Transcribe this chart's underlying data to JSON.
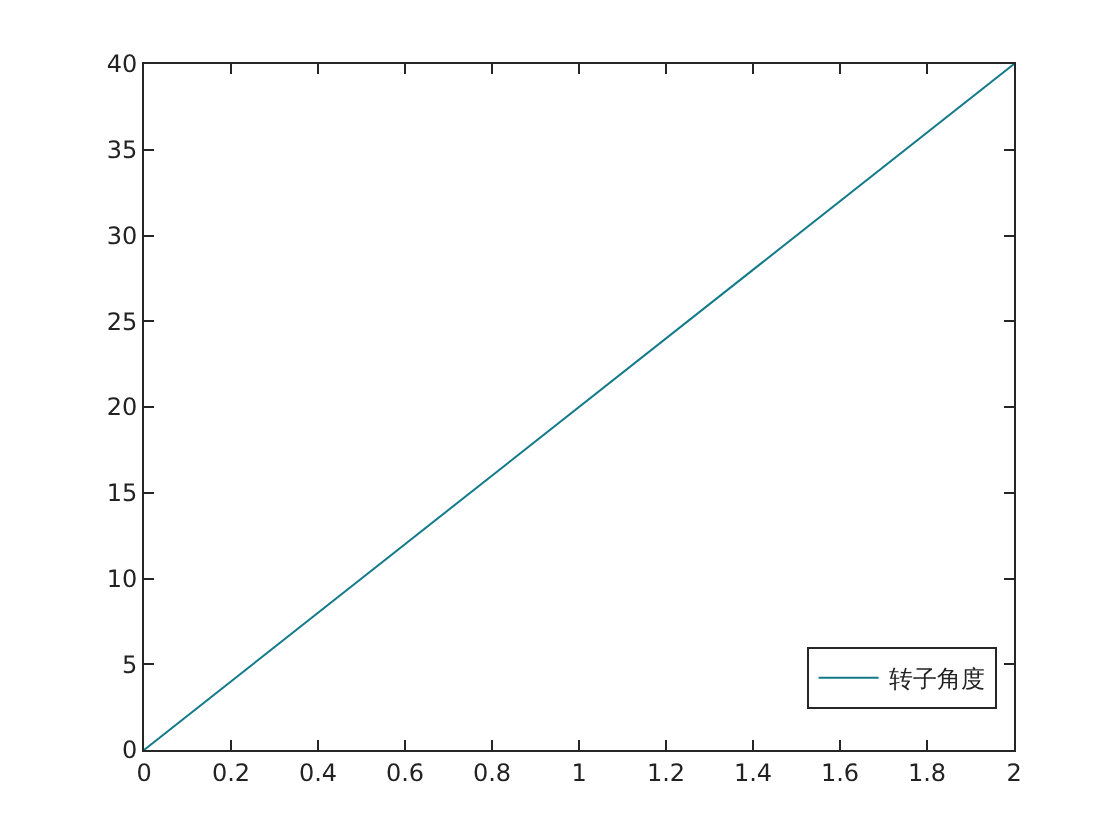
{
  "chart_data": {
    "type": "line",
    "x": [
      0,
      2
    ],
    "series": [
      {
        "name": "转子角度",
        "color": "#137a8a",
        "values": [
          0,
          40
        ]
      }
    ],
    "xlim": [
      0,
      2
    ],
    "ylim": [
      0,
      40
    ],
    "xticks": [
      0,
      0.2,
      0.4,
      0.6,
      0.8,
      1,
      1.2,
      1.4,
      1.6,
      1.8,
      2
    ],
    "yticks": [
      0,
      5,
      10,
      15,
      20,
      25,
      30,
      35,
      40
    ],
    "grid": false,
    "legend": "bottom right"
  }
}
